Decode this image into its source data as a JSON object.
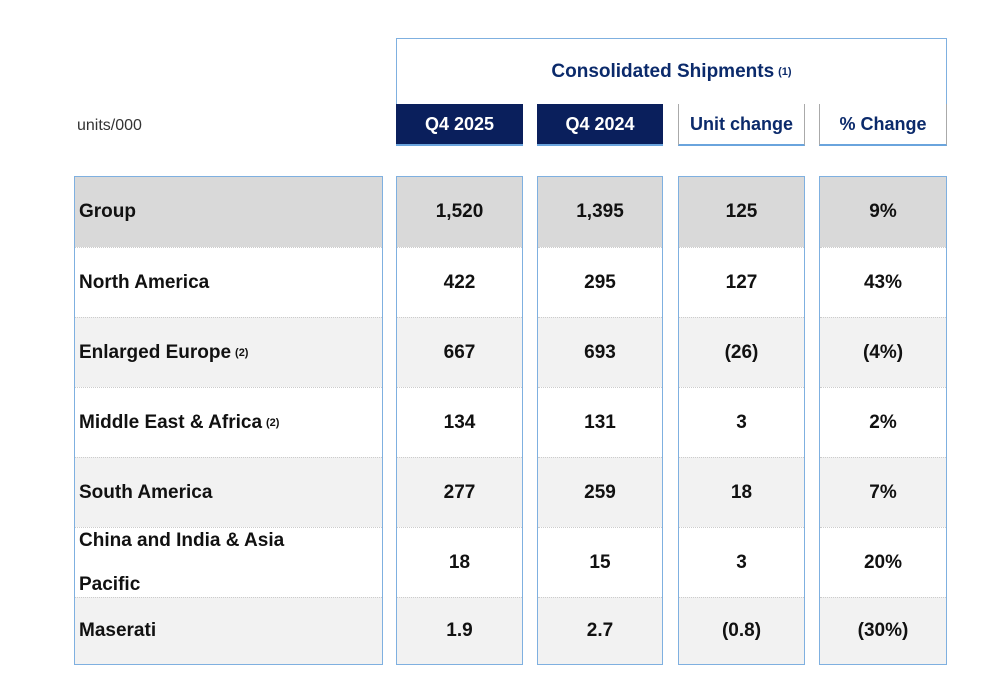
{
  "units_label": "units/000",
  "header": {
    "title": "Consolidated Shipments",
    "title_note": "(1)"
  },
  "columns": [
    "Q4 2025",
    "Q4 2024",
    "Unit change",
    "% Change"
  ],
  "rows": [
    {
      "label": "Group",
      "note": "",
      "values": [
        "1,520",
        "1,395",
        "125",
        "9%"
      ]
    },
    {
      "label": "North America",
      "note": "",
      "values": [
        "422",
        "295",
        "127",
        "43%"
      ]
    },
    {
      "label": "Enlarged Europe",
      "note": "(2)",
      "values": [
        "667",
        "693",
        "(26)",
        "(4%)"
      ]
    },
    {
      "label": "Middle East & Africa",
      "note": "(2)",
      "values": [
        "134",
        "131",
        "3",
        "2%"
      ]
    },
    {
      "label": "South America",
      "note": "",
      "values": [
        "277",
        "259",
        "18",
        "7%"
      ]
    },
    {
      "label": "China and India & Asia Pacific",
      "note": "",
      "values": [
        "18",
        "15",
        "3",
        "20%"
      ]
    },
    {
      "label": "Maserati",
      "note": "",
      "values": [
        "1.9",
        "2.7",
        "(0.8)",
        "(30%)"
      ]
    }
  ],
  "colors": {
    "navy": "#0a1f5c",
    "border": "#7fb0e0",
    "group_bg": "#d9d9d9",
    "alt_bg": "#f2f2f2"
  }
}
